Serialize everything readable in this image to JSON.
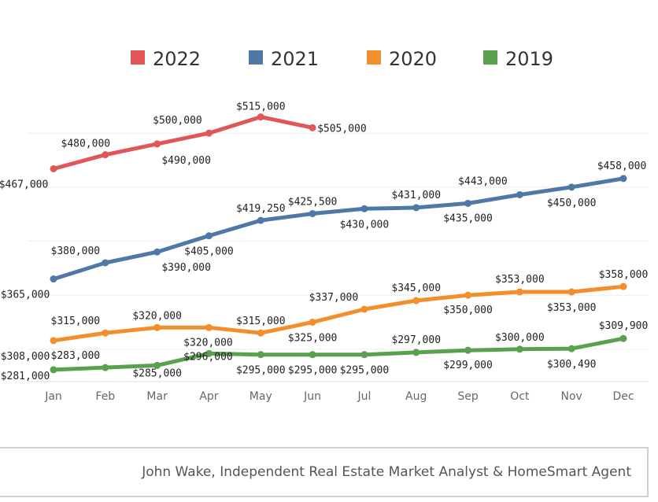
{
  "chart_data": {
    "type": "line",
    "categories": [
      "Jan",
      "Feb",
      "Mar",
      "Apr",
      "May",
      "Jun",
      "Jul",
      "Aug",
      "Sep",
      "Oct",
      "Nov",
      "Dec"
    ],
    "ylim": [
      270000,
      530000
    ],
    "grid": true,
    "legend_placement": "top",
    "series": [
      {
        "name": "2022",
        "color": "#e15759",
        "values": [
          467000,
          480000,
          490000,
          500000,
          515000,
          505000,
          null,
          null,
          null,
          null,
          null,
          null
        ],
        "labels": [
          "$467,000",
          "$480,000",
          "$490,000",
          "$500,000",
          "$515,000",
          "$505,000"
        ]
      },
      {
        "name": "2021",
        "color": "#4e79a7",
        "values": [
          365000,
          380000,
          390000,
          405000,
          419250,
          425500,
          430000,
          431000,
          435000,
          443000,
          450000,
          458000
        ],
        "labels": [
          "$365,000",
          "$380,000",
          "$390,000",
          "$405,000",
          "$419,250",
          "$425,500",
          "$430,000",
          "$431,000",
          "$435,000",
          "$443,000",
          "$450,000",
          "$458,000"
        ]
      },
      {
        "name": "2020",
        "color": "#f28e2b",
        "values": [
          308000,
          315000,
          320000,
          320000,
          315000,
          325000,
          337000,
          345000,
          350000,
          353000,
          353000,
          358000
        ],
        "labels": [
          "$308,000",
          "$315,000",
          "$320,000",
          "$320,000",
          "$315,000",
          "$325,000",
          "$337,000",
          "$345,000",
          "$350,000",
          "$353,000",
          "$353,000",
          "$358,000"
        ]
      },
      {
        "name": "2019",
        "color": "#59a14f",
        "values": [
          281000,
          283000,
          285000,
          296000,
          295000,
          295000,
          295000,
          297000,
          299000,
          300000,
          300490,
          309900
        ],
        "labels": [
          "$281,000",
          "$283,000",
          "$285,000",
          "$296,000",
          "$295,000",
          "$295,000",
          "$295,000",
          "$297,000",
          "$299,000",
          "$300,000",
          "$300,490",
          "$309,900"
        ]
      }
    ]
  },
  "footer": {
    "credit": "John Wake, Independent Real Estate Market Analyst & HomeSmart Agent"
  }
}
